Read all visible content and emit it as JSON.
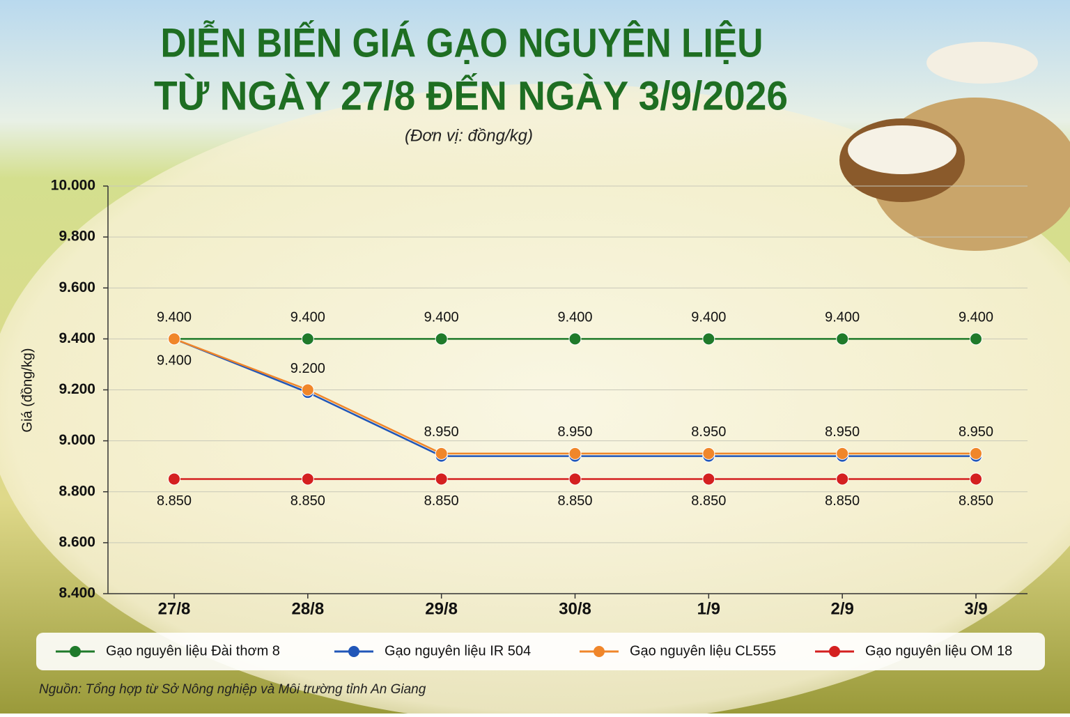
{
  "chart_data": {
    "type": "line",
    "title": [
      "DIỄN BIẾN GIÁ GẠO NGUYÊN LIỆU",
      "TỪ NGÀY 27/8 ĐẾN NGÀY 3/9/2026"
    ],
    "subtitle": "(Đơn vị: đồng/kg)",
    "y_label": "Giá (đồng/kg)",
    "source": "Nguồn: Tổng hợp từ Sở Nông nghiệp và Môi trường tỉnh An Giang",
    "categories": [
      "27/8",
      "28/8",
      "29/8",
      "30/8",
      "1/9",
      "2/9",
      "3/9"
    ],
    "ylim": [
      8400,
      10000
    ],
    "yticks": [
      {
        "value": 8400,
        "label": "8.400"
      },
      {
        "value": 8600,
        "label": "8.600"
      },
      {
        "value": 8800,
        "label": "8.800"
      },
      {
        "value": 9000,
        "label": "9.000"
      },
      {
        "value": 9200,
        "label": "9.200"
      },
      {
        "value": 9400,
        "label": "9.400"
      },
      {
        "value": 9600,
        "label": "9.600"
      },
      {
        "value": 9800,
        "label": "9.800"
      },
      {
        "value": 10000,
        "label": "10.000"
      }
    ],
    "grid": true,
    "series": [
      {
        "name": "Gạo nguyên liệu Đài thơm 8",
        "color": "#1f7a2a",
        "values": [
          9400,
          9400,
          9400,
          9400,
          9400,
          9400,
          9400
        ],
        "value_labels": [
          "9.400",
          "9.400",
          "9.400",
          "9.400",
          "9.400",
          "9.400",
          "9.400"
        ]
      },
      {
        "name": "Gạo nguyên liệu IR 504",
        "color": "#2156b8",
        "values": [
          9400,
          9190,
          8940,
          8940,
          8940,
          8940,
          8940
        ]
      },
      {
        "name": "Gạo nguyên liệu CL555",
        "color": "#f0862a",
        "values": [
          9400,
          9200,
          8950,
          8950,
          8950,
          8950,
          8950
        ],
        "value_labels": [
          "9.400",
          "9.200",
          "8.950",
          "8.950",
          "8.950",
          "8.950",
          "8.950"
        ]
      },
      {
        "name": "Gạo nguyên liệu OM 18",
        "color": "#d42020",
        "values": [
          8850,
          8850,
          8850,
          8850,
          8850,
          8850,
          8850
        ],
        "value_labels": [
          "8.850",
          "8.850",
          "8.850",
          "8.850",
          "8.850",
          "8.850",
          "8.850"
        ]
      }
    ]
  }
}
